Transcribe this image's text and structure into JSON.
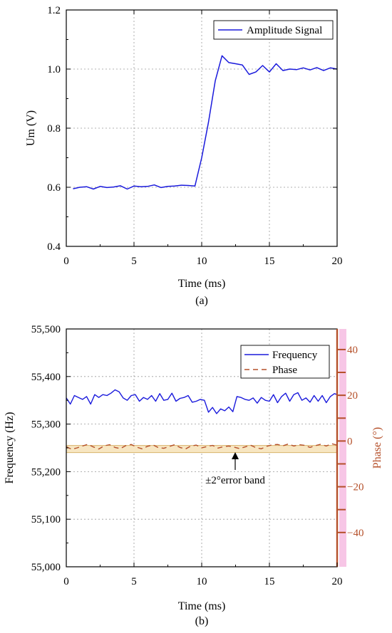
{
  "chart_data": [
    {
      "type": "line",
      "panel_label": "(a)",
      "xlabel": "Time (ms)",
      "ylabel": "Um (V)",
      "xlim": [
        0,
        20
      ],
      "ylim": [
        0.4,
        1.2
      ],
      "x_ticks": [
        0,
        5,
        10,
        15,
        20
      ],
      "y_ticks": [
        0.4,
        0.6,
        0.8,
        1.0,
        1.2
      ],
      "x_tick_labels": [
        "0",
        "5",
        "10",
        "15",
        "20"
      ],
      "y_tick_labels": [
        "0.4",
        "0.6",
        "0.8",
        "1.0",
        "1.2"
      ],
      "grid": true,
      "legend_position": "top-right",
      "series": [
        {
          "name": "Amplitude Signal",
          "color": "#1a1adc",
          "x": [
            0.5,
            1.0,
            1.5,
            2.0,
            2.5,
            3.0,
            3.5,
            4.0,
            4.5,
            5.0,
            5.5,
            6.0,
            6.5,
            7.0,
            7.5,
            8.0,
            8.5,
            9.0,
            9.5,
            10.0,
            10.5,
            11.0,
            11.5,
            12.0,
            12.5,
            13.0,
            13.5,
            14.0,
            14.5,
            15.0,
            15.5,
            16.0,
            16.5,
            17.0,
            17.5,
            18.0,
            18.5,
            19.0,
            19.5,
            20.0
          ],
          "y": [
            0.595,
            0.6,
            0.602,
            0.594,
            0.603,
            0.599,
            0.601,
            0.605,
            0.594,
            0.604,
            0.602,
            0.603,
            0.608,
            0.599,
            0.603,
            0.604,
            0.607,
            0.606,
            0.604,
            0.7,
            0.82,
            0.96,
            1.045,
            1.022,
            1.018,
            1.014,
            0.982,
            0.99,
            1.012,
            0.99,
            1.018,
            0.995,
            1.0,
            0.998,
            1.004,
            0.997,
            1.005,
            0.995,
            1.004,
            1.0
          ]
        }
      ]
    },
    {
      "type": "line",
      "panel_label": "(b)",
      "xlabel": "Time (ms)",
      "ylabel": "Frequency (Hz)",
      "ylabel_right": "Phase (°)",
      "xlim": [
        0,
        20
      ],
      "ylim": [
        55000,
        55500
      ],
      "ylim_right": [
        -55,
        49
      ],
      "x_ticks": [
        0,
        5,
        10,
        15,
        20
      ],
      "y_ticks": [
        55000,
        55100,
        55200,
        55300,
        55400,
        55500
      ],
      "y_ticks_right": [
        -40,
        -20,
        0,
        20,
        40
      ],
      "x_tick_labels": [
        "0",
        "5",
        "10",
        "15",
        "20"
      ],
      "y_tick_labels": [
        "55,000",
        "55,100",
        "55,200",
        "55,300",
        "55,400",
        "55,500"
      ],
      "y_tick_labels_right": [
        "−40",
        "−20",
        "0",
        "20",
        "40"
      ],
      "grid": true,
      "legend_position": "top-right",
      "band": {
        "label": "±2°error band",
        "y_range": [
          55240,
          55255
        ],
        "color": "#f7e6c2",
        "edge_color": "#d9b36b"
      },
      "series": [
        {
          "name": "Frequency",
          "axis": "left",
          "color": "#1a1adc",
          "style": "solid",
          "x": [
            0.0,
            0.3,
            0.6,
            0.9,
            1.2,
            1.5,
            1.8,
            2.1,
            2.4,
            2.7,
            3.0,
            3.3,
            3.6,
            3.9,
            4.2,
            4.5,
            4.8,
            5.1,
            5.4,
            5.7,
            6.0,
            6.3,
            6.6,
            6.9,
            7.2,
            7.5,
            7.8,
            8.1,
            8.4,
            8.7,
            9.0,
            9.3,
            9.6,
            9.9,
            10.2,
            10.5,
            10.8,
            11.1,
            11.4,
            11.7,
            12.0,
            12.3,
            12.6,
            12.9,
            13.2,
            13.5,
            13.8,
            14.1,
            14.4,
            14.7,
            15.0,
            15.3,
            15.6,
            15.9,
            16.2,
            16.5,
            16.8,
            17.1,
            17.4,
            17.7,
            18.0,
            18.3,
            18.6,
            18.9,
            19.2,
            19.5,
            19.8,
            20.0
          ],
          "y": [
            55355,
            55342,
            55360,
            55356,
            55352,
            55358,
            55342,
            55362,
            55356,
            55362,
            55360,
            55365,
            55372,
            55368,
            55355,
            55350,
            55360,
            55362,
            55348,
            55356,
            55352,
            55360,
            55348,
            55364,
            55350,
            55352,
            55365,
            55348,
            55354,
            55356,
            55360,
            55346,
            55348,
            55352,
            55350,
            55325,
            55335,
            55322,
            55332,
            55328,
            55336,
            55326,
            55358,
            55356,
            55352,
            55350,
            55355,
            55344,
            55356,
            55350,
            55348,
            55362,
            55345,
            55358,
            55365,
            55348,
            55362,
            55366,
            55350,
            55355,
            55346,
            55360,
            55348,
            55360,
            55345,
            55358,
            55364,
            55362
          ]
        },
        {
          "name": "Phase",
          "axis": "right",
          "color": "#b5502a",
          "style": "dashed",
          "x": [
            0.0,
            0.4,
            0.8,
            1.2,
            1.6,
            2.0,
            2.4,
            2.8,
            3.2,
            3.6,
            4.0,
            4.4,
            4.8,
            5.2,
            5.6,
            6.0,
            6.4,
            6.8,
            7.2,
            7.6,
            8.0,
            8.4,
            8.8,
            9.2,
            9.6,
            10.0,
            10.4,
            10.8,
            11.2,
            11.6,
            12.0,
            12.4,
            12.8,
            13.2,
            13.6,
            14.0,
            14.4,
            14.8,
            15.2,
            15.6,
            16.0,
            16.4,
            16.8,
            17.2,
            17.6,
            18.0,
            18.4,
            18.8,
            19.2,
            19.6,
            20.0
          ],
          "y": [
            -2.5,
            -3.6,
            -3.0,
            -2.2,
            -1.4,
            -2.6,
            -3.5,
            -2.1,
            -1.6,
            -2.8,
            -3.3,
            -2.0,
            -1.5,
            -2.7,
            -3.4,
            -2.3,
            -1.7,
            -2.9,
            -3.2,
            -2.4,
            -1.6,
            -2.8,
            -3.5,
            -2.2,
            -1.8,
            -3.0,
            -2.4,
            -1.9,
            -3.1,
            -2.5,
            -2.2,
            -2.7,
            -3.3,
            -2.6,
            -1.8,
            -2.9,
            -3.4,
            -2.3,
            -1.7,
            -1.5,
            -2.1,
            -1.3,
            -2.2,
            -1.6,
            -1.9,
            -2.8,
            -2.0,
            -1.4,
            -2.2,
            -1.2,
            -1.8
          ]
        }
      ]
    }
  ]
}
